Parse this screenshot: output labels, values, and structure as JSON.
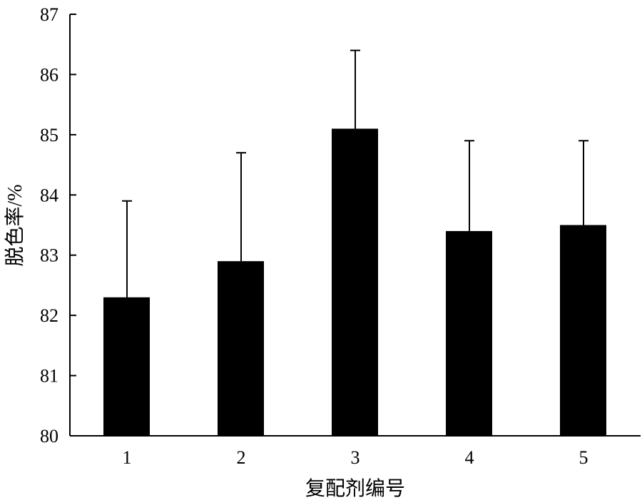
{
  "chart_data": {
    "type": "bar",
    "title": "",
    "xlabel": "复配剂编号",
    "ylabel": "脱色率/%",
    "categories": [
      "1",
      "2",
      "3",
      "4",
      "5"
    ],
    "values": [
      82.3,
      82.9,
      85.1,
      83.4,
      83.5
    ],
    "error_upper": [
      1.6,
      1.8,
      1.3,
      1.5,
      1.4
    ],
    "ylim": [
      80,
      87
    ],
    "yticks": [
      "80",
      "81",
      "82",
      "83",
      "84",
      "85",
      "86",
      "87"
    ],
    "grid": false,
    "bar_color": "#000000"
  }
}
